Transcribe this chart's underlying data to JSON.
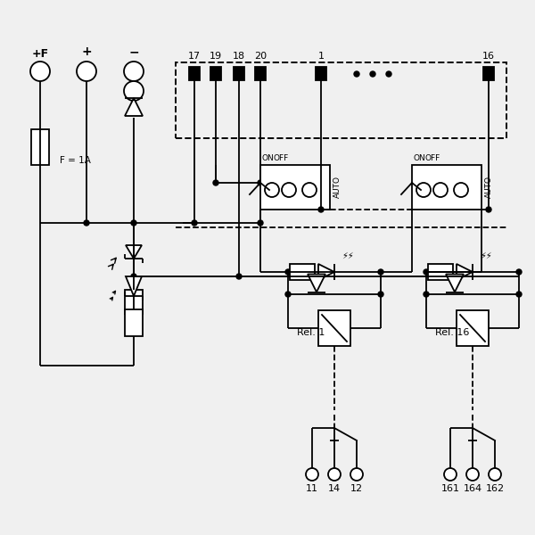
{
  "bg": "#f0f0f0",
  "lc": "#000000",
  "lw": 1.3,
  "figsize": [
    6.0,
    6.0
  ],
  "dpi": 100,
  "labels": {
    "pf": "+F",
    "plus": "+",
    "minus": "−",
    "fuse": "F = 1A",
    "rel1": "Rel. 1",
    "rel16": "Rel. 16",
    "on": "ON",
    "off": "OFF",
    "auto": "AUTO",
    "p17": "17",
    "p19": "19",
    "p18": "18",
    "p20": "20",
    "p1": "1",
    "p16": "16",
    "c11": "11",
    "c14": "14",
    "c12": "12",
    "c161": "161",
    "c164": "164",
    "c162": "162"
  }
}
